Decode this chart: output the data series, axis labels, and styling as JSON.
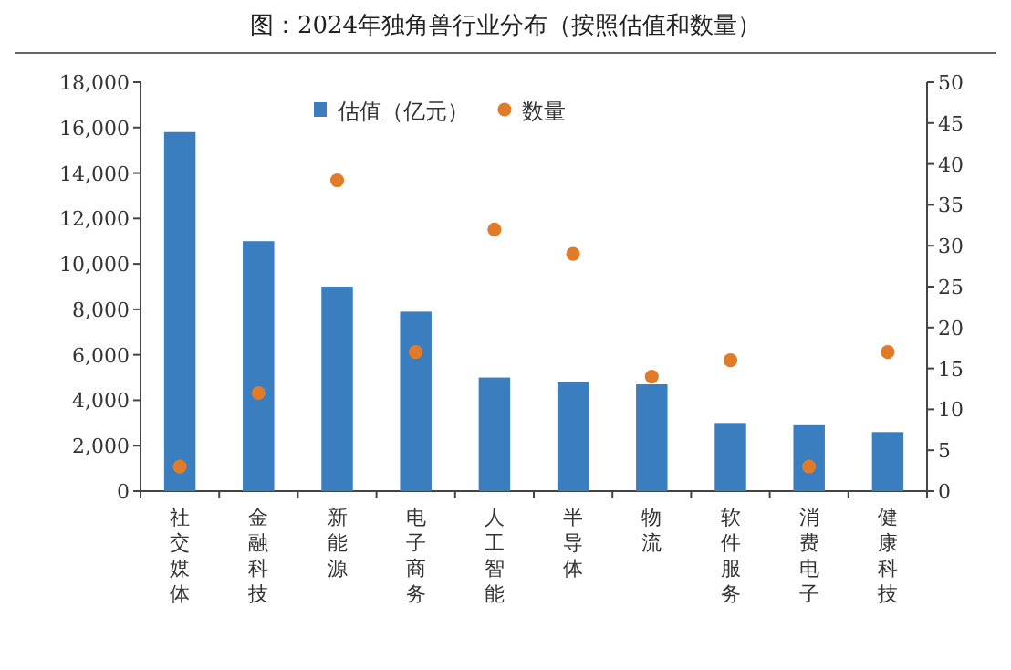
{
  "chart_data": {
    "type": "bar",
    "title": "图：2024年独角兽行业分布（按照估值和数量）",
    "categories": [
      "社交媒体",
      "金融科技",
      "新能源",
      "电子商务",
      "人工智能",
      "半导体",
      "物流",
      "软件服务",
      "消费电子",
      "健康科技"
    ],
    "series": [
      {
        "name": "估值（亿元）",
        "color": "#3a7ebf",
        "values": [
          15800,
          11000,
          9000,
          7900,
          5000,
          4800,
          4700,
          3000,
          2900,
          2600
        ]
      },
      {
        "name": "数量",
        "type": "scatter",
        "axis": "y2",
        "color": "#e07b2a",
        "values": [
          3,
          12,
          38,
          17,
          32,
          29,
          14,
          16,
          3,
          17
        ]
      }
    ],
    "ylim": [
      0,
      18000
    ],
    "yticks": [
      {
        "value": 0,
        "label": "0"
      },
      {
        "value": 2000,
        "label": "2,000"
      },
      {
        "value": 4000,
        "label": "4,000"
      },
      {
        "value": 6000,
        "label": "6,000"
      },
      {
        "value": 8000,
        "label": "8,000"
      },
      {
        "value": 10000,
        "label": "10,000"
      },
      {
        "value": 12000,
        "label": "12,000"
      },
      {
        "value": 14000,
        "label": "14,000"
      },
      {
        "value": 16000,
        "label": "16,000"
      },
      {
        "value": 18000,
        "label": "18,000"
      }
    ],
    "y2lim": [
      0,
      50
    ],
    "y2ticks": [
      0,
      5,
      10,
      15,
      20,
      25,
      30,
      35,
      40,
      45,
      50
    ],
    "legend": "top",
    "marker": "circle"
  }
}
